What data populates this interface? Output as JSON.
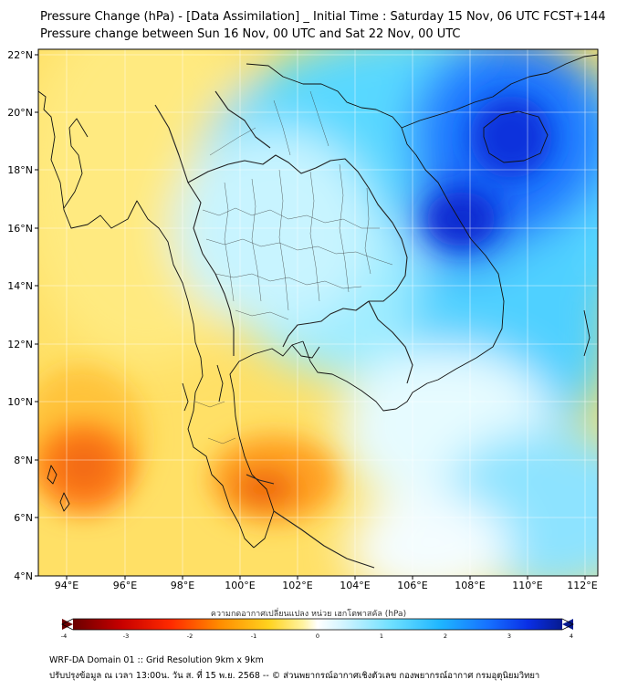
{
  "title": {
    "line1": "Pressure Change (hPa) - [Data Assimilation] _ Initial Time : Saturday 15 Nov, 06 UTC FCST+144",
    "line2": "Pressure change between Sun 16 Nov, 00 UTC and Sat 22 Nov, 00 UTC"
  },
  "map": {
    "lat_ticks": [
      "22°N",
      "20°N",
      "18°N",
      "16°N",
      "14°N",
      "12°N",
      "10°N",
      "8°N",
      "6°N",
      "4°N"
    ],
    "lon_ticks": [
      "94°E",
      "96°E",
      "98°E",
      "100°E",
      "102°E",
      "104°E",
      "106°E",
      "108°E",
      "110°E",
      "112°E"
    ],
    "lat_range": [
      4,
      22
    ],
    "lon_range": [
      93,
      112.4
    ]
  },
  "colorbar": {
    "title": "ความกดอากาศเปลี่ยนแปลง หน่วย เฮกโตพาสคัล (hPa)",
    "ticks": [
      "-4",
      "-3",
      "-2",
      "-1",
      "0",
      "1",
      "2",
      "3",
      "4"
    ],
    "range": [
      -4,
      4
    ],
    "colors": [
      "#6b0000",
      "#c80000",
      "#ff2a00",
      "#ff7a00",
      "#ffb400",
      "#ffe14a",
      "#fff7b0",
      "#ffffff",
      "#d4f5ff",
      "#6fe0ff",
      "#1fb6ff",
      "#1670ff",
      "#0a2fe6",
      "#061a90"
    ]
  },
  "footer": {
    "line1": "WRF-DA Domain 01 :: Grid Resolution 9km x 9km",
    "line2": "ปรับปรุงข้อมูล ณ เวลา 13:00น. วัน ส. ที่ 15 พ.ย. 2568 -- © ส่วนพยากรณ์อากาศเชิงตัวเลข กองพยากรณ์อากาศ กรมอุตุนิยมวิทยา"
  }
}
